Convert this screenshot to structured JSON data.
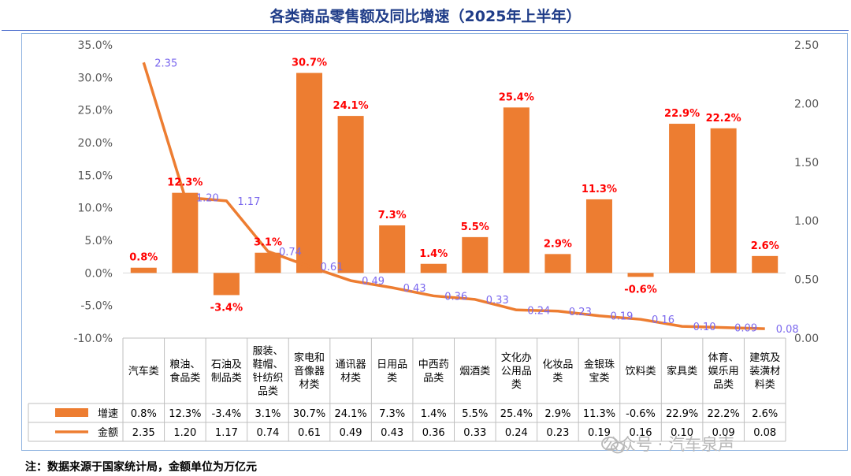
{
  "title": "各类商品零售额及同比增速（2025年上半年）",
  "note": "注：数据来源于国家统计局，金额单位为万亿元",
  "watermark": "公众号 · 汽车泉声",
  "colors": {
    "bar": "#ed7d31",
    "line": "#ed7d31",
    "bar_label": "#ff0000",
    "line_label": "#7b68ee",
    "title": "#1f3c88"
  },
  "chart_data": {
    "type": "bar+line",
    "categories": [
      [
        "汽车类"
      ],
      [
        "粮油、",
        "食品类"
      ],
      [
        "石油及",
        "制品类"
      ],
      [
        "服装、",
        "鞋帽、",
        "针纺织",
        "品类"
      ],
      [
        "家电和",
        "音像器",
        "材类"
      ],
      [
        "通讯器",
        "材类"
      ],
      [
        "日用品",
        "类"
      ],
      [
        "中西药",
        "品类"
      ],
      [
        "烟酒类"
      ],
      [
        "文化办",
        "公用品",
        "类"
      ],
      [
        "化妆品",
        "类"
      ],
      [
        "金银珠",
        "宝类"
      ],
      [
        "饮料类"
      ],
      [
        "家具类"
      ],
      [
        "体育、",
        "娱乐用",
        "品类"
      ],
      [
        "建筑及",
        "装潢材",
        "料类"
      ]
    ],
    "series": [
      {
        "name": "增速",
        "type": "bar",
        "axis": "left",
        "values": [
          0.8,
          12.3,
          -3.4,
          3.1,
          30.7,
          24.1,
          7.3,
          1.4,
          5.5,
          25.4,
          2.9,
          11.3,
          -0.6,
          22.9,
          22.2,
          2.6
        ],
        "labels": [
          "0.8%",
          "12.3%",
          "-3.4%",
          "3.1%",
          "30.7%",
          "24.1%",
          "7.3%",
          "1.4%",
          "5.5%",
          "25.4%",
          "2.9%",
          "11.3%",
          "-0.6%",
          "22.9%",
          "22.2%",
          "2.6%"
        ]
      },
      {
        "name": "金额",
        "type": "line",
        "axis": "right",
        "values": [
          2.35,
          1.2,
          1.17,
          0.74,
          0.61,
          0.49,
          0.43,
          0.36,
          0.33,
          0.24,
          0.23,
          0.19,
          0.16,
          0.1,
          0.09,
          0.08
        ],
        "labels": [
          "2.35",
          "1.20",
          "1.17",
          "0.74",
          "0.61",
          "0.49",
          "0.43",
          "0.36",
          "0.33",
          "0.24",
          "0.23",
          "0.19",
          "0.16",
          "0.10",
          "0.09",
          "0.08"
        ]
      }
    ],
    "y_left": {
      "min": -10,
      "max": 35,
      "ticks": [
        "35.0%",
        "30.0%",
        "25.0%",
        "20.0%",
        "15.0%",
        "10.0%",
        "5.0%",
        "0.0%",
        "-5.0%",
        "-10.0%"
      ]
    },
    "y_right": {
      "min": 0,
      "max": 2.5,
      "ticks": [
        "2.50",
        "2.00",
        "1.50",
        "1.00",
        "0.50",
        "0.00"
      ]
    },
    "legend_placement": "data-table-left"
  }
}
